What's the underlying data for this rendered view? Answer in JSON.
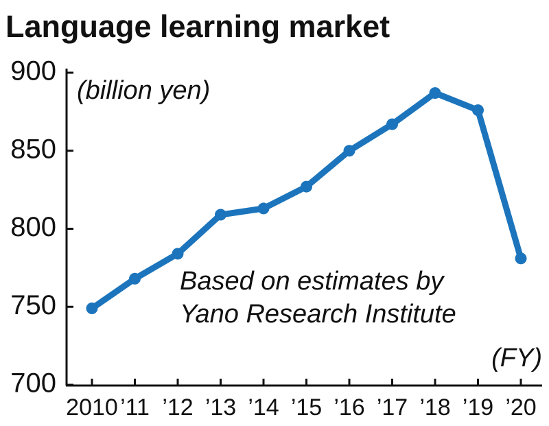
{
  "chart_data": {
    "type": "line",
    "title": "Language learning market",
    "y_unit_label": "(billion yen)",
    "x_unit_label": "(FY)",
    "annotation": [
      "Based on estimates by",
      "Yano Research Institute"
    ],
    "categories": [
      "2010",
      "’11",
      "’12",
      "’13",
      "’14",
      "’15",
      "’16",
      "’17",
      "’18",
      "’19",
      "’20"
    ],
    "series": [
      {
        "name": "Language learning market",
        "color": "#1c75bc",
        "values": [
          749,
          768,
          784,
          809,
          813,
          827,
          850,
          867,
          887,
          876,
          781
        ]
      }
    ],
    "ylim": [
      700,
      900
    ],
    "yticks": [
      700,
      750,
      800,
      850,
      900
    ],
    "grid": false
  }
}
